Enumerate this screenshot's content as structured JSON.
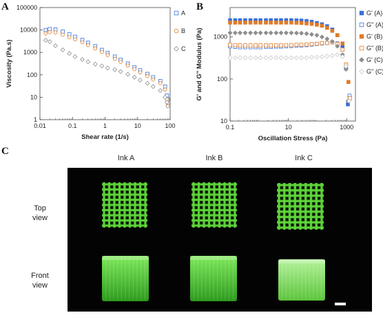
{
  "panels": {
    "a": "A",
    "b": "B",
    "c": "C"
  },
  "colors": {
    "ink_a": "#3a6fd8",
    "ink_b": "#e07b28",
    "ink_c": "#8e8e8e",
    "gel_green": "#5fd63a",
    "photo_bg": "#030303"
  },
  "chart_data": [
    {
      "type": "scatter",
      "panel": "A",
      "xlabel": "Shear rate  (1/s)",
      "ylabel": "Viscosity (Pa.s)",
      "xscale": "log",
      "yscale": "log",
      "xlim": [
        0.01,
        100
      ],
      "ylim": [
        1,
        100000
      ],
      "xticks": [
        {
          "v": 0.01,
          "label": "0.01"
        },
        {
          "v": 0.1,
          "label": "0.1"
        },
        {
          "v": 1,
          "label": "1"
        },
        {
          "v": 10,
          "label": "10"
        },
        {
          "v": 100,
          "label": "100"
        }
      ],
      "yticks": [
        {
          "v": 1,
          "label": "1"
        },
        {
          "v": 10,
          "label": "10"
        },
        {
          "v": 100,
          "label": "100"
        },
        {
          "v": 1000,
          "label": "1000"
        },
        {
          "v": 10000,
          "label": "10000"
        },
        {
          "v": 100000,
          "label": "100000"
        }
      ],
      "grid": false,
      "legend_position": "right",
      "series": [
        {
          "name": "A",
          "marker": "square",
          "color": "#3a6fd8",
          "points": [
            [
              0.015,
              10000
            ],
            [
              0.02,
              11000
            ],
            [
              0.03,
              10500
            ],
            [
              0.05,
              8500
            ],
            [
              0.08,
              6500
            ],
            [
              0.12,
              5000
            ],
            [
              0.2,
              3600
            ],
            [
              0.3,
              2700
            ],
            [
              0.5,
              1900
            ],
            [
              0.8,
              1300
            ],
            [
              1.2,
              950
            ],
            [
              2,
              650
            ],
            [
              3,
              470
            ],
            [
              5,
              320
            ],
            [
              8,
              220
            ],
            [
              12,
              160
            ],
            [
              20,
              110
            ],
            [
              30,
              78
            ],
            [
              50,
              53
            ],
            [
              70,
              30
            ],
            [
              80,
              12
            ],
            [
              85,
              8
            ]
          ]
        },
        {
          "name": "B",
          "marker": "circle",
          "color": "#e07b28",
          "points": [
            [
              0.015,
              7000
            ],
            [
              0.02,
              8000
            ],
            [
              0.03,
              7800
            ],
            [
              0.05,
              6200
            ],
            [
              0.08,
              4800
            ],
            [
              0.12,
              3800
            ],
            [
              0.2,
              2800
            ],
            [
              0.3,
              2100
            ],
            [
              0.5,
              1500
            ],
            [
              0.8,
              1050
            ],
            [
              1.2,
              760
            ],
            [
              2,
              520
            ],
            [
              3,
              380
            ],
            [
              5,
              260
            ],
            [
              8,
              180
            ],
            [
              12,
              128
            ],
            [
              20,
              88
            ],
            [
              30,
              62
            ],
            [
              50,
              42
            ],
            [
              70,
              22
            ],
            [
              80,
              8
            ],
            [
              85,
              5
            ]
          ]
        },
        {
          "name": "C",
          "marker": "diamond",
          "color": "#8e8e8e",
          "points": [
            [
              0.015,
              3500
            ],
            [
              0.02,
              3000
            ],
            [
              0.03,
              2000
            ],
            [
              0.05,
              1300
            ],
            [
              0.08,
              900
            ],
            [
              0.12,
              650
            ],
            [
              0.2,
              480
            ],
            [
              0.3,
              380
            ],
            [
              0.5,
              300
            ],
            [
              0.8,
              250
            ],
            [
              1.2,
              200
            ],
            [
              2,
              170
            ],
            [
              3,
              140
            ],
            [
              5,
              105
            ],
            [
              8,
              78
            ],
            [
              12,
              58
            ],
            [
              20,
              42
            ],
            [
              30,
              30
            ],
            [
              50,
              20
            ],
            [
              70,
              10
            ],
            [
              80,
              6
            ],
            [
              85,
              4
            ]
          ]
        }
      ]
    },
    {
      "type": "scatter",
      "panel": "B",
      "xlabel": "Oscillation Stress (Pa)",
      "ylabel": "G' and G'' Modulus (Pa)",
      "xscale": "log",
      "yscale": "log",
      "xlim": [
        0.1,
        2000
      ],
      "ylim": [
        10,
        5000
      ],
      "xticks": [
        {
          "v": 0.1,
          "label": "0.1"
        },
        {
          "v": 10,
          "label": "10"
        },
        {
          "v": 1000,
          "label": "1000"
        }
      ],
      "yticks": [
        {
          "v": 10,
          "label": "10"
        },
        {
          "v": 100,
          "label": "100"
        },
        {
          "v": 1000,
          "label": "1000"
        }
      ],
      "grid": false,
      "legend_position": "right",
      "series": [
        {
          "name": "G' (A)",
          "marker": "square",
          "filled": true,
          "color": "#3a6fd8",
          "points": [
            [
              0.1,
              2500
            ],
            [
              0.15,
              2500
            ],
            [
              0.22,
              2500
            ],
            [
              0.33,
              2500
            ],
            [
              0.5,
              2500
            ],
            [
              0.75,
              2500
            ],
            [
              1.1,
              2500
            ],
            [
              1.7,
              2500
            ],
            [
              2.5,
              2500
            ],
            [
              3.8,
              2500
            ],
            [
              5.6,
              2500
            ],
            [
              8.4,
              2500
            ],
            [
              12.6,
              2500
            ],
            [
              19,
              2480
            ],
            [
              28,
              2450
            ],
            [
              42,
              2400
            ],
            [
              63,
              2300
            ],
            [
              95,
              2150
            ],
            [
              142,
              2000
            ],
            [
              213,
              1800
            ],
            [
              320,
              1500
            ],
            [
              480,
              1100
            ],
            [
              720,
              600
            ],
            [
              950,
              180
            ],
            [
              1100,
              25
            ]
          ]
        },
        {
          "name": "G'' (A)",
          "marker": "square",
          "filled": false,
          "color": "#3a6fd8",
          "points": [
            [
              0.1,
              600
            ],
            [
              0.15,
              580
            ],
            [
              0.22,
              570
            ],
            [
              0.33,
              570
            ],
            [
              0.5,
              570
            ],
            [
              0.75,
              570
            ],
            [
              1.1,
              570
            ],
            [
              1.7,
              580
            ],
            [
              2.5,
              580
            ],
            [
              3.8,
              590
            ],
            [
              5.6,
              590
            ],
            [
              8.4,
              600
            ],
            [
              12.6,
              610
            ],
            [
              19,
              620
            ],
            [
              28,
              630
            ],
            [
              42,
              640
            ],
            [
              63,
              660
            ],
            [
              95,
              680
            ],
            [
              142,
              700
            ],
            [
              213,
              720
            ],
            [
              320,
              740
            ],
            [
              480,
              700
            ],
            [
              720,
              500
            ],
            [
              950,
              200
            ],
            [
              1250,
              40
            ]
          ]
        },
        {
          "name": "G' (B)",
          "marker": "square",
          "filled": true,
          "color": "#e07b28",
          "points": [
            [
              0.1,
              2200
            ],
            [
              0.15,
              2200
            ],
            [
              0.22,
              2200
            ],
            [
              0.33,
              2200
            ],
            [
              0.5,
              2200
            ],
            [
              0.75,
              2200
            ],
            [
              1.1,
              2200
            ],
            [
              1.7,
              2200
            ],
            [
              2.5,
              2200
            ],
            [
              3.8,
              2200
            ],
            [
              5.6,
              2200
            ],
            [
              8.4,
              2200
            ],
            [
              12.6,
              2200
            ],
            [
              19,
              2180
            ],
            [
              28,
              2150
            ],
            [
              42,
              2100
            ],
            [
              63,
              2050
            ],
            [
              95,
              1950
            ],
            [
              142,
              1850
            ],
            [
              213,
              1650
            ],
            [
              320,
              1400
            ],
            [
              480,
              1100
            ],
            [
              720,
              700
            ],
            [
              950,
              220
            ],
            [
              1150,
              85
            ]
          ]
        },
        {
          "name": "G'' (B)",
          "marker": "square",
          "filled": false,
          "color": "#e07b28",
          "points": [
            [
              0.1,
              650
            ],
            [
              0.15,
              640
            ],
            [
              0.22,
              630
            ],
            [
              0.33,
              630
            ],
            [
              0.5,
              630
            ],
            [
              0.75,
              630
            ],
            [
              1.1,
              630
            ],
            [
              1.7,
              630
            ],
            [
              2.5,
              630
            ],
            [
              3.8,
              630
            ],
            [
              5.6,
              630
            ],
            [
              8.4,
              640
            ],
            [
              12.6,
              640
            ],
            [
              19,
              650
            ],
            [
              28,
              650
            ],
            [
              42,
              660
            ],
            [
              63,
              680
            ],
            [
              95,
              690
            ],
            [
              142,
              710
            ],
            [
              213,
              720
            ],
            [
              320,
              740
            ],
            [
              480,
              680
            ],
            [
              720,
              500
            ],
            [
              950,
              220
            ],
            [
              1300,
              35
            ]
          ]
        },
        {
          "name": "G' (C)",
          "marker": "diamond",
          "filled": true,
          "color": "#8e8e8e",
          "points": [
            [
              0.1,
              1250
            ],
            [
              0.15,
              1250
            ],
            [
              0.22,
              1250
            ],
            [
              0.33,
              1250
            ],
            [
              0.5,
              1250
            ],
            [
              0.75,
              1250
            ],
            [
              1.1,
              1250
            ],
            [
              1.7,
              1250
            ],
            [
              2.5,
              1250
            ],
            [
              3.8,
              1250
            ],
            [
              5.6,
              1250
            ],
            [
              8.4,
              1250
            ],
            [
              12.6,
              1250
            ],
            [
              19,
              1240
            ],
            [
              28,
              1230
            ],
            [
              42,
              1200
            ],
            [
              63,
              1150
            ],
            [
              95,
              1100
            ],
            [
              142,
              1000
            ],
            [
              213,
              900
            ],
            [
              320,
              780
            ],
            [
              480,
              600
            ],
            [
              720,
              380
            ],
            [
              950,
              170
            ],
            [
              1100,
              30
            ]
          ]
        },
        {
          "name": "G'' (C)",
          "marker": "diamond",
          "filled": false,
          "color": "#c9c9c9",
          "points": [
            [
              0.1,
              320
            ],
            [
              0.15,
              320
            ],
            [
              0.22,
              320
            ],
            [
              0.33,
              320
            ],
            [
              0.5,
              320
            ],
            [
              0.75,
              320
            ],
            [
              1.1,
              320
            ],
            [
              1.7,
              320
            ],
            [
              2.5,
              320
            ],
            [
              3.8,
              320
            ],
            [
              5.6,
              320
            ],
            [
              8.4,
              320
            ],
            [
              12.6,
              320
            ],
            [
              19,
              320
            ],
            [
              28,
              320
            ],
            [
              42,
              320
            ],
            [
              63,
              330
            ],
            [
              95,
              330
            ],
            [
              142,
              340
            ],
            [
              213,
              350
            ],
            [
              320,
              360
            ],
            [
              480,
              380
            ],
            [
              720,
              340
            ],
            [
              950,
              200
            ],
            [
              1200,
              30
            ]
          ]
        }
      ]
    }
  ],
  "photo": {
    "columns": [
      "Ink A",
      "Ink B",
      "Ink C"
    ],
    "rows": [
      "Top\nview",
      "Front\nview"
    ],
    "scale_bar": true
  }
}
